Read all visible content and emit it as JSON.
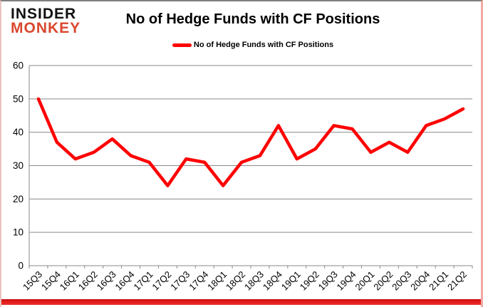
{
  "logo": {
    "line1": "INSIDER",
    "line2": "MONKEY",
    "line2_color": "#d9472e"
  },
  "header": {
    "title": "No of Hedge Funds with CF Positions"
  },
  "legend": {
    "label": "No of Hedge Funds with CF Positions",
    "swatch_color": "#fe0000",
    "position": "top-center"
  },
  "chart_data": {
    "type": "line",
    "title": "No of Hedge Funds with CF Positions",
    "categories": [
      "15Q3",
      "15Q4",
      "16Q1",
      "16Q2",
      "16Q3",
      "16Q4",
      "17Q1",
      "17Q2",
      "17Q3",
      "17Q4",
      "18Q1",
      "18Q2",
      "18Q3",
      "18Q4",
      "19Q1",
      "19Q2",
      "19Q3",
      "19Q4",
      "20Q1",
      "20Q2",
      "20Q3",
      "20Q4",
      "21Q1",
      "21Q2"
    ],
    "series": [
      {
        "name": "No of Hedge Funds with CF Positions",
        "values": [
          50,
          37,
          32,
          34,
          38,
          33,
          31,
          24,
          32,
          31,
          24,
          31,
          33,
          42,
          32,
          35,
          42,
          41,
          34,
          37,
          34,
          42,
          44,
          47
        ]
      }
    ],
    "xlabel": "",
    "ylabel": "",
    "ylim": [
      0,
      60
    ],
    "ytick_step": 10,
    "yticks": [
      0,
      10,
      20,
      30,
      40,
      50,
      60
    ],
    "grid": true,
    "legend_position": "top",
    "colors": {
      "series": "#fe0000",
      "gridline": "#8a8a8a",
      "labels": "#000000",
      "bottom_bar": "#e41b17"
    }
  }
}
